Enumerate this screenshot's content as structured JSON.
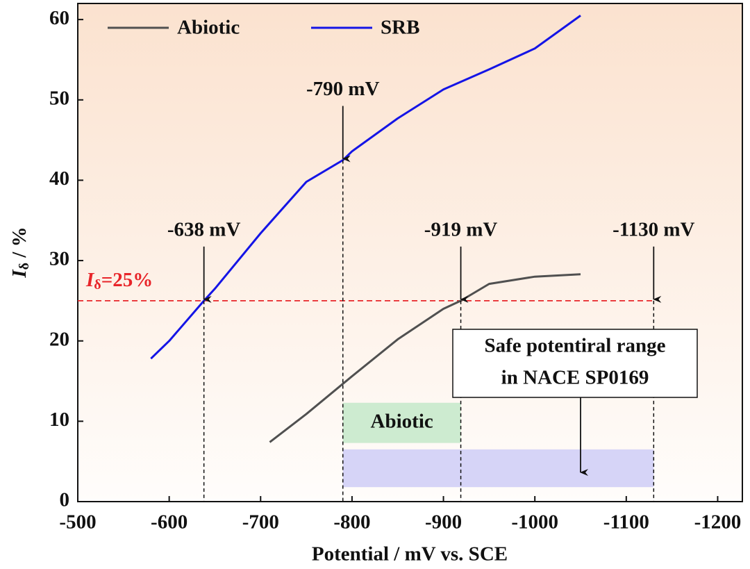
{
  "chart_data": {
    "type": "line",
    "x_label": "Potential / mV vs. SCE",
    "y_label": {
      "main": "I",
      "sub": "δ",
      "rest": " / %"
    },
    "xlim": [
      -500,
      -1227
    ],
    "xticks": [
      -500,
      -600,
      -700,
      -800,
      -900,
      -1000,
      -1100,
      -1200
    ],
    "ylim": [
      0,
      62
    ],
    "yticks": [
      0,
      10,
      20,
      30,
      40,
      50,
      60
    ],
    "legend": "top-left",
    "series": [
      {
        "name": "Abiotic",
        "color": "#505050",
        "x": [
          -710,
          -750,
          -800,
          -850,
          -900,
          -919,
          -950,
          -1000,
          -1050
        ],
        "values": [
          7.4,
          10.9,
          15.6,
          20.2,
          24,
          25,
          27.1,
          28,
          28.3
        ]
      },
      {
        "name": "SRB",
        "color": "#1414e6",
        "x": [
          -580,
          -600,
          -638,
          -650,
          -700,
          -750,
          -790,
          -800,
          -850,
          -900,
          -950,
          -1000,
          -1050
        ],
        "values": [
          17.8,
          20,
          25,
          26.5,
          33.4,
          39.8,
          42.5,
          43.6,
          47.7,
          51.3,
          53.8,
          56.4,
          60.5
        ]
      }
    ],
    "threshold": {
      "value": 25,
      "color": "#e8252a",
      "label": {
        "main": "I",
        "sub": "δ",
        "rest": "=25%"
      }
    },
    "markers": [
      {
        "x": -638,
        "y": 25,
        "label": "-638 mV"
      },
      {
        "x": -790,
        "y": 42.5,
        "label": "-790 mV"
      },
      {
        "x": -919,
        "y": 25,
        "label": "-919 mV"
      },
      {
        "x": -1130,
        "y": 25,
        "label": "-1130 mV"
      }
    ],
    "regions": [
      {
        "x": [
          -790,
          -919
        ],
        "y": [
          7.3,
          12.3
        ],
        "color": "#cdebd0",
        "label": "Abiotic"
      },
      {
        "x": [
          -790,
          -1130
        ],
        "y": [
          1.8,
          6.5
        ],
        "color": "#d6d4f7"
      }
    ],
    "note": {
      "lines": [
        "Safe potentiral range",
        "in NACE SP0169"
      ]
    }
  }
}
